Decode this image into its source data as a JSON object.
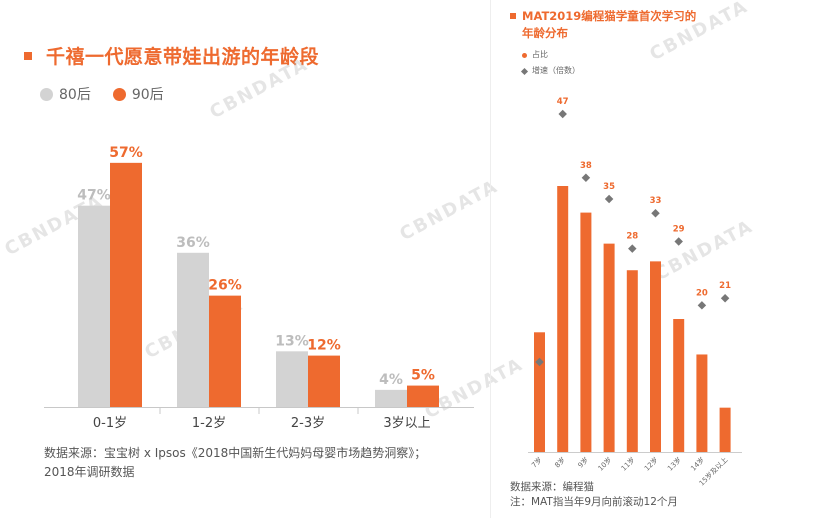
{
  "left_chart": {
    "title": "千禧一代愿意带娃出游的年龄段",
    "legend": [
      {
        "name": "80后",
        "color": "#d3d3d3"
      },
      {
        "name": "90后",
        "color": "#ee6a2f"
      }
    ],
    "source_line1": "数据来源：宝宝树 x Ipsos《2018中国新生代妈妈母婴市场趋势洞察》；",
    "source_line2": "2018年调研数据"
  },
  "right_chart": {
    "title_line1": "MAT2019编程猫学童首次学习的",
    "title_line2": "年龄分布",
    "legend_share": "占比",
    "legend_growth": "增速（倍数）",
    "source_line1": "数据来源：编程猫",
    "source_line2": "注：MAT指当年9月向前滚动12个月"
  },
  "watermark": "CBNDATA",
  "chart_data": [
    {
      "type": "bar",
      "title": "千禧一代愿意带娃出游的年龄段",
      "categories": [
        "0-1岁",
        "1-2岁",
        "2-3岁",
        "3岁以上"
      ],
      "series": [
        {
          "name": "80后",
          "values": [
            47,
            36,
            13,
            4
          ],
          "labels": [
            "47%",
            "36%",
            "13%",
            "4%"
          ],
          "color": "#d3d3d3"
        },
        {
          "name": "90后",
          "values": [
            57,
            26,
            12,
            5
          ],
          "labels": [
            "57%",
            "26%",
            "12%",
            "5%"
          ],
          "color": "#ee6a2f"
        }
      ],
      "ylim": [
        0,
        60
      ],
      "grid": false,
      "legend_position": "top-left"
    },
    {
      "type": "bar",
      "title": "MAT2019编程猫学童首次学习的年龄分布",
      "categories": [
        "7岁",
        "8岁",
        "9岁",
        "10岁",
        "11岁",
        "12岁",
        "13岁",
        "14岁",
        "15岁及以上"
      ],
      "series": [
        {
          "name": "占比",
          "values": [
            13.5,
            30,
            27,
            23.5,
            20.5,
            21.5,
            15,
            11,
            5
          ],
          "color": "#ee6a2f"
        },
        {
          "name": "增速（倍数）",
          "values": [
            12,
            47,
            38,
            35,
            28,
            33,
            29,
            20,
            21
          ],
          "color": "#777777"
        }
      ],
      "grid": false,
      "legend_position": "top-left"
    }
  ]
}
